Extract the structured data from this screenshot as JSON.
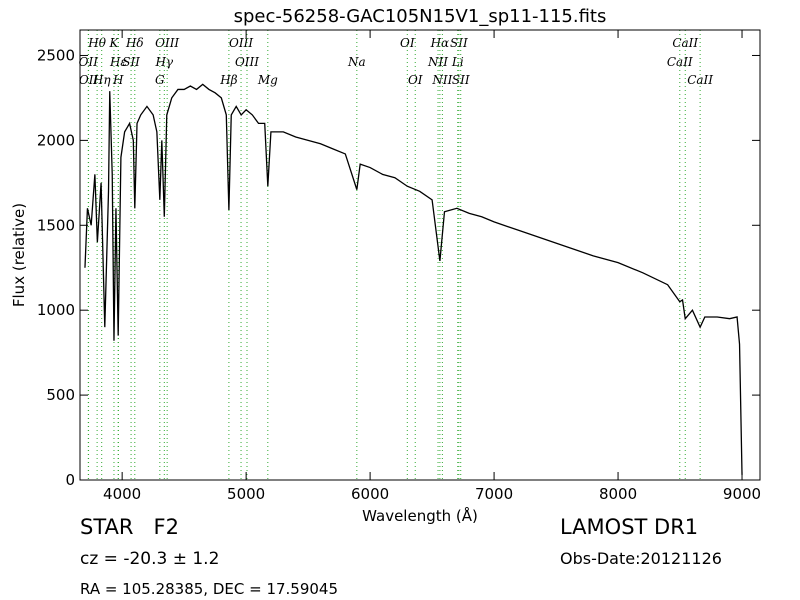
{
  "chart_data": {
    "type": "line",
    "title": "spec-56258-GAC105N15V1_sp11-115.fits",
    "xlabel": "Wavelength (Å)",
    "ylabel": "Flux (relative)",
    "xlim": [
      3660,
      9145
    ],
    "ylim": [
      0,
      2650
    ],
    "xticks": [
      4000,
      5000,
      6000,
      7000,
      8000,
      9000
    ],
    "yticks": [
      0,
      500,
      1000,
      1500,
      2000,
      2500
    ],
    "color": "#000000",
    "marker_color": "#33aa33",
    "x": [
      3700,
      3720,
      3750,
      3780,
      3800,
      3830,
      3860,
      3890,
      3900,
      3920,
      3934,
      3950,
      3968,
      3990,
      4020,
      4060,
      4090,
      4102,
      4120,
      4150,
      4200,
      4250,
      4280,
      4304,
      4320,
      4340,
      4360,
      4400,
      4450,
      4500,
      4550,
      4600,
      4650,
      4700,
      4750,
      4800,
      4840,
      4861,
      4880,
      4920,
      4960,
      5000,
      5050,
      5100,
      5150,
      5175,
      5200,
      5300,
      5400,
      5500,
      5600,
      5700,
      5800,
      5893,
      5920,
      6000,
      6100,
      6200,
      6300,
      6400,
      6500,
      6563,
      6600,
      6700,
      6800,
      6900,
      7000,
      7200,
      7400,
      7600,
      7800,
      8000,
      8200,
      8400,
      8498,
      8520,
      8542,
      8600,
      8662,
      8700,
      8800,
      8900,
      8960,
      8980,
      9000
    ],
    "values": [
      1250,
      1600,
      1500,
      1800,
      1400,
      1750,
      900,
      1700,
      2290,
      1800,
      820,
      1600,
      850,
      1900,
      2050,
      2100,
      2000,
      1600,
      2100,
      2150,
      2200,
      2150,
      2050,
      1650,
      2000,
      1550,
      2150,
      2250,
      2300,
      2300,
      2320,
      2300,
      2330,
      2300,
      2280,
      2250,
      2150,
      1590,
      2150,
      2200,
      2150,
      2180,
      2150,
      2100,
      2100,
      1730,
      2050,
      2050,
      2020,
      2000,
      1980,
      1950,
      1920,
      1710,
      1860,
      1840,
      1800,
      1780,
      1730,
      1700,
      1650,
      1290,
      1580,
      1600,
      1570,
      1550,
      1520,
      1470,
      1420,
      1370,
      1320,
      1280,
      1220,
      1150,
      1050,
      1060,
      950,
      1000,
      900,
      960,
      960,
      950,
      960,
      800,
      30
    ],
    "annotations": [
      [
        {
          "label": "Hθ",
          "x": 3798
        },
        {
          "label": "K",
          "x": 3934
        },
        {
          "label": "Hδ",
          "x": 4102
        },
        {
          "label": "OIII",
          "x": 4363
        },
        {
          "label": "OIII",
          "x": 4959
        },
        {
          "label": "OI",
          "x": 6300
        },
        {
          "label": "Hα",
          "x": 6563
        },
        {
          "label": "SII",
          "x": 6716
        },
        {
          "label": "CaII",
          "x": 8542
        }
      ],
      [
        {
          "label": "OII",
          "x": 3727
        },
        {
          "label": "Hε",
          "x": 3970
        },
        {
          "label": "SII",
          "x": 4072
        },
        {
          "label": "Hγ",
          "x": 4340
        },
        {
          "label": "OIII",
          "x": 5007
        },
        {
          "label": "Na",
          "x": 5893
        },
        {
          "label": "NII",
          "x": 6548
        },
        {
          "label": "Li",
          "x": 6707
        },
        {
          "label": "CaII",
          "x": 8498
        }
      ],
      [
        {
          "label": "OII",
          "x": 3729
        },
        {
          "label": "Hη",
          "x": 3835
        },
        {
          "label": "H",
          "x": 3968
        },
        {
          "label": "G",
          "x": 4304
        },
        {
          "label": "Hβ",
          "x": 4861
        },
        {
          "label": "Mg",
          "x": 5175
        },
        {
          "label": "OI",
          "x": 6364
        },
        {
          "label": "NII",
          "x": 6583
        },
        {
          "label": "SII",
          "x": 6731
        },
        {
          "label": "CaII",
          "x": 8662
        }
      ]
    ]
  },
  "footer": {
    "class": "STAR   F2",
    "survey": "LAMOST DR1",
    "cz": "cz = -20.3 ± 1.2",
    "date": "Obs-Date:20121126",
    "coords": "RA = 105.28385, DEC = 17.59045"
  }
}
